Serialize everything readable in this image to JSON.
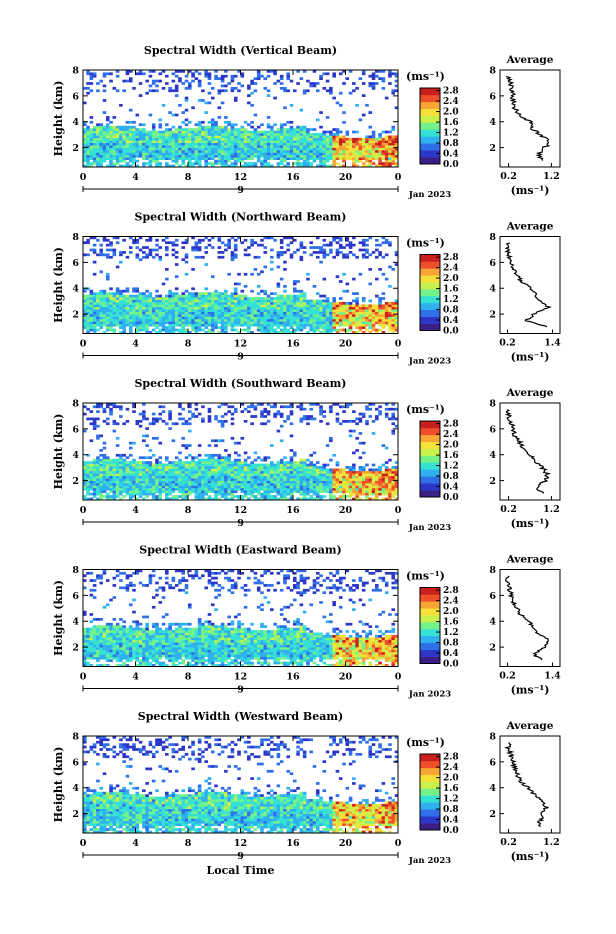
{
  "chart_data": {
    "type": "heatmap",
    "xlabel": "Local Time",
    "date_label": "Jan 2023",
    "x_ticks": [
      "0",
      "4",
      "8",
      "12",
      "16",
      "20",
      "0"
    ],
    "day_label": "9",
    "y_ticks": [
      "2",
      "4",
      "6",
      "8"
    ],
    "ylabel": "Height (km)",
    "unit_label": "(ms⁻¹)",
    "avg_title": "Average",
    "avg_xlabel": "(ms⁻¹)",
    "avg_y_ticks": [
      "2",
      "4",
      "6",
      "8"
    ],
    "colorscale": [
      "#3a1f87",
      "#2c37c8",
      "#2f6fe8",
      "#2fb0ef",
      "#35e0d4",
      "#74f28a",
      "#c8f24b",
      "#f6e03a",
      "#f7a534",
      "#ee4f2a",
      "#c8201d"
    ],
    "x_range_hours": [
      0,
      24
    ],
    "y_range_km": [
      0.5,
      8
    ],
    "panels": [
      {
        "title": "Spectral Width (Vertical Beam)",
        "cb_ticks": [
          "0.0",
          "0.4",
          "0.8",
          "1.2",
          "1.6",
          "2.0",
          "2.4",
          "2.8"
        ],
        "cb_range": [
          0,
          2.9
        ],
        "avg_ticks": [
          "0.2",
          "1.2"
        ],
        "avg_range": [
          0,
          1.4
        ],
        "avg_profile": {
          "height_km": [
            1.0,
            1.5,
            2.0,
            2.5,
            3.0,
            3.5,
            4.0,
            4.5,
            5.0,
            5.5,
            6.0,
            6.5,
            7.0,
            7.5
          ],
          "width": [
            1.0,
            0.9,
            1.05,
            1.15,
            0.95,
            0.75,
            0.7,
            0.45,
            0.35,
            0.3,
            0.3,
            0.25,
            0.25,
            0.2
          ]
        }
      },
      {
        "title": "Spectral Width (Northward Beam)",
        "cb_ticks": [
          "0.0",
          "0.4",
          "0.8",
          "1.2",
          "1.6",
          "2.0",
          "2.4",
          "2.8"
        ],
        "cb_range": [
          0,
          2.9
        ],
        "avg_ticks": [
          "0.2",
          "1.4"
        ],
        "avg_range": [
          0,
          1.6
        ],
        "avg_profile": {
          "height_km": [
            1.0,
            1.5,
            2.0,
            2.5,
            3.0,
            3.5,
            4.0,
            4.5,
            5.0,
            5.5,
            6.0,
            6.5,
            7.0,
            7.5
          ],
          "width": [
            1.3,
            0.7,
            0.9,
            1.3,
            1.1,
            0.95,
            0.8,
            0.6,
            0.45,
            0.35,
            0.3,
            0.25,
            0.2,
            0.2
          ]
        }
      },
      {
        "title": "Spectral Width (Southward Beam)",
        "cb_ticks": [
          "0.0",
          "0.4",
          "0.8",
          "1.2",
          "1.6",
          "2.0",
          "2.4",
          "2.8"
        ],
        "cb_range": [
          0,
          2.9
        ],
        "avg_ticks": [
          "0.2",
          "1.2"
        ],
        "avg_range": [
          0,
          1.4
        ],
        "avg_profile": {
          "height_km": [
            1.0,
            1.5,
            2.0,
            2.5,
            3.0,
            3.5,
            4.0,
            4.5,
            5.0,
            5.5,
            6.0,
            6.5,
            7.0,
            7.5
          ],
          "width": [
            1.0,
            0.85,
            1.05,
            1.1,
            1.0,
            0.85,
            0.7,
            0.55,
            0.45,
            0.35,
            0.3,
            0.25,
            0.2,
            0.2
          ]
        }
      },
      {
        "title": "Spectral Width (Eastward Beam)",
        "cb_ticks": [
          "0.0",
          "0.4",
          "0.8",
          "1.2",
          "1.6",
          "2.0",
          "2.4",
          "2.8"
        ],
        "cb_range": [
          0,
          2.9
        ],
        "avg_ticks": [
          "0.2",
          "1.4"
        ],
        "avg_range": [
          0,
          1.6
        ],
        "avg_profile": {
          "height_km": [
            1.0,
            1.5,
            2.0,
            2.5,
            3.0,
            3.5,
            4.0,
            4.5,
            5.0,
            5.5,
            6.0,
            6.5,
            7.0,
            7.5
          ],
          "width": [
            1.1,
            0.9,
            1.2,
            1.3,
            1.05,
            0.9,
            0.75,
            0.55,
            0.45,
            0.35,
            0.3,
            0.25,
            0.2,
            0.2
          ]
        }
      },
      {
        "title": "Spectral Width (Westward Beam)",
        "cb_ticks": [
          "0.0",
          "0.4",
          "0.8",
          "1.2",
          "1.6",
          "2.0",
          "2.4",
          "2.8"
        ],
        "cb_range": [
          0,
          2.9
        ],
        "avg_ticks": [
          "0.2",
          "1.2"
        ],
        "avg_range": [
          0,
          1.4
        ],
        "avg_profile": {
          "height_km": [
            1.0,
            1.5,
            2.0,
            2.5,
            3.0,
            3.5,
            4.0,
            4.5,
            5.0,
            5.5,
            6.0,
            6.5,
            7.0,
            7.5
          ],
          "width": [
            0.9,
            0.95,
            1.0,
            1.1,
            0.95,
            0.8,
            0.65,
            0.5,
            0.4,
            0.35,
            0.3,
            0.25,
            0.2,
            0.2
          ]
        }
      }
    ]
  }
}
